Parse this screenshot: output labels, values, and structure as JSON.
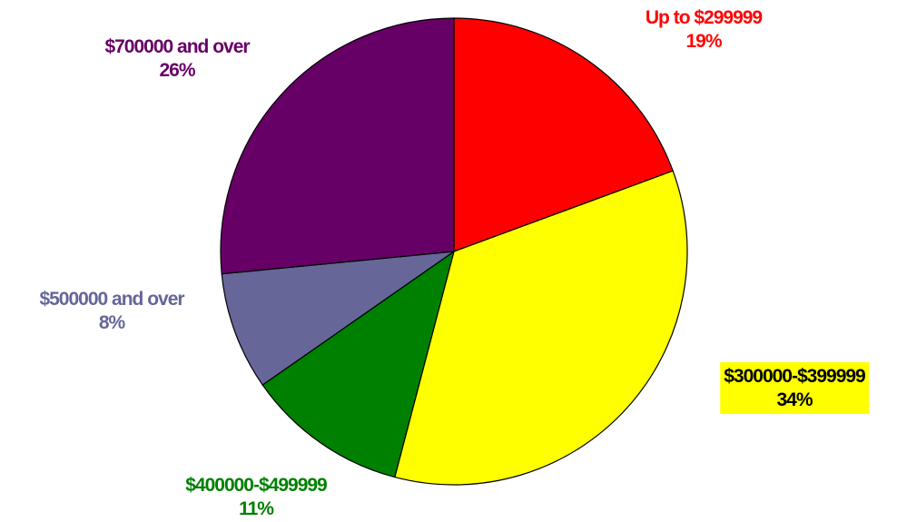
{
  "chart_data": {
    "type": "pie",
    "title": "",
    "slices": [
      {
        "label": "Up to $299999",
        "percent_label": "19%",
        "value": 19,
        "color": "#ff0000",
        "text_color": "#ff0000",
        "highlight": ""
      },
      {
        "label": "$300000-$399999",
        "percent_label": "34%",
        "value": 34,
        "color": "#ffff00",
        "text_color": "#000000",
        "highlight": "#ffff00"
      },
      {
        "label": "$400000-$499999",
        "percent_label": "11%",
        "value": 11,
        "color": "#008000",
        "text_color": "#008000",
        "highlight": ""
      },
      {
        "label": "$500000 and over",
        "percent_label": "8%",
        "value": 8,
        "color": "#666699",
        "text_color": "#666699",
        "highlight": ""
      },
      {
        "label": "$700000 and over",
        "percent_label": "26%",
        "value": 26,
        "color": "#660066",
        "text_color": "#660066",
        "highlight": ""
      }
    ],
    "start_angle": "12 o'clock",
    "direction": "clockwise",
    "outline_color": "#000000",
    "legend": "none"
  }
}
